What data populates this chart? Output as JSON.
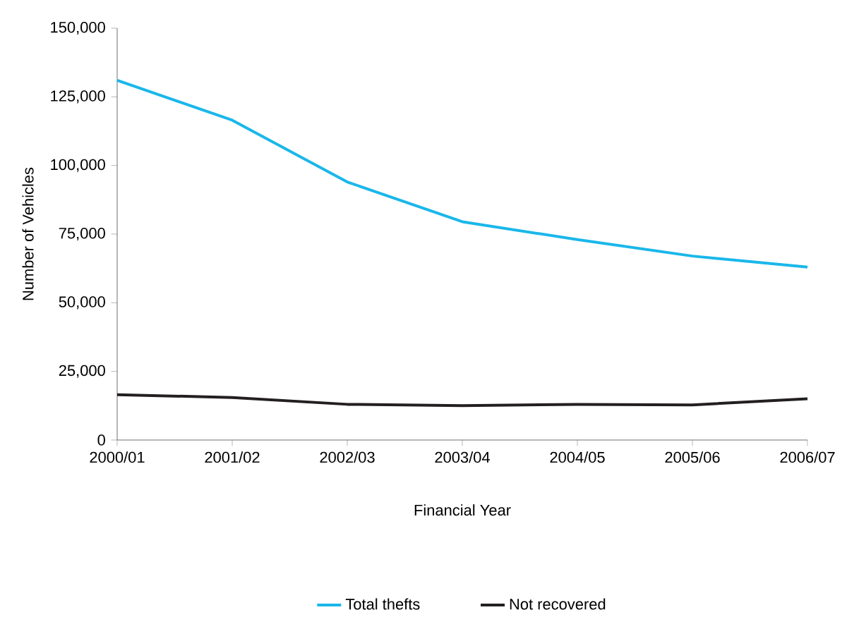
{
  "chart_data": {
    "type": "line",
    "xlabel": "Financial Year",
    "ylabel": "Number of Vehicles",
    "categories": [
      "2000/01",
      "2001/02",
      "2002/03",
      "2003/04",
      "2004/05",
      "2005/06",
      "2006/07"
    ],
    "series": [
      {
        "name": "Total thefts",
        "color": "#1ab7ea",
        "values": [
          131000,
          116500,
          94000,
          79500,
          73000,
          67000,
          63000
        ]
      },
      {
        "name": "Not recovered",
        "color": "#231f20",
        "values": [
          16500,
          15500,
          13000,
          12500,
          13000,
          12800,
          15000
        ]
      }
    ],
    "ylim": [
      0,
      150000
    ],
    "yticks": [
      {
        "value": 0,
        "label": "0"
      },
      {
        "value": 25000,
        "label": "25,000"
      },
      {
        "value": 50000,
        "label": "50,000"
      },
      {
        "value": 75000,
        "label": "75,000"
      },
      {
        "value": 100000,
        "label": "100,000"
      },
      {
        "value": 125000,
        "label": "125,000"
      },
      {
        "value": 150000,
        "label": "150,000"
      }
    ],
    "grid": false,
    "legend": "bottom"
  }
}
